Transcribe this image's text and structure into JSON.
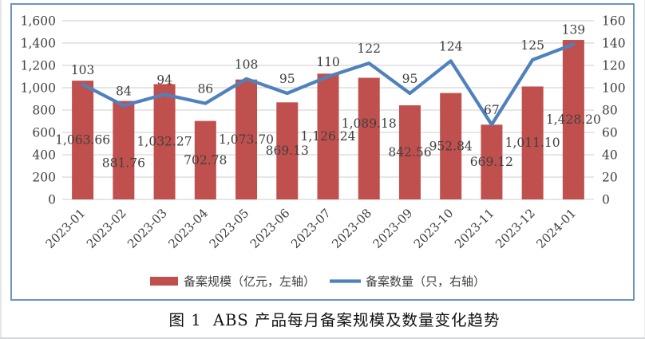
{
  "figure": {
    "caption": "图 1  ABS 产品每月备案规模及数量变化趋势"
  },
  "chart_data": {
    "type": "bar",
    "subtype": "combo-bar-line-dual-axis",
    "categories": [
      "2023-01",
      "2023-02",
      "2023-03",
      "2023-04",
      "2023-05",
      "2023-06",
      "2023-07",
      "2023-08",
      "2023-09",
      "2023-10",
      "2023-11",
      "2023-12",
      "2024-01"
    ],
    "series": [
      {
        "name": "备案规模（亿元，左轴）",
        "type": "bar",
        "axis": "left",
        "color": "#C0504D",
        "values": [
          1063.66,
          881.76,
          1032.27,
          702.78,
          1073.7,
          869.13,
          1126.24,
          1089.18,
          842.56,
          952.84,
          669.12,
          1011.1,
          1428.2
        ],
        "labels": [
          "1,063.66",
          "881.76",
          "1,032.27",
          "702.78",
          "1,073.70",
          "869.13",
          "1,126.24",
          "1,089.18",
          "842.56",
          "952.84",
          "669.12",
          "1,011.10",
          "1,428.20"
        ]
      },
      {
        "name": "备案数量（只，右轴）",
        "type": "line",
        "axis": "right",
        "color": "#4F81BD",
        "values": [
          103,
          84,
          94,
          86,
          108,
          95,
          110,
          122,
          95,
          124,
          67,
          125,
          139
        ],
        "labels": [
          "103",
          "84",
          "94",
          "86",
          "108",
          "95",
          "110",
          "122",
          "95",
          "124",
          "67",
          "125",
          "139"
        ]
      }
    ],
    "left_axis": {
      "min": 0,
      "max": 1600,
      "step": 200,
      "tick_labels": [
        "0",
        "200",
        "400",
        "600",
        "800",
        "1,000",
        "1,200",
        "1,400",
        "1,600"
      ]
    },
    "right_axis": {
      "min": 0,
      "max": 160,
      "step": 20,
      "tick_labels": [
        "0",
        "20",
        "40",
        "60",
        "80",
        "100",
        "120",
        "140",
        "160"
      ]
    },
    "grid": true,
    "legend_position": "bottom",
    "colors": {
      "grid": "#D6D6D6",
      "axis_text": "#3F3F3F",
      "data_label_text": "#3F3F3F",
      "frame_border": "#6E93C2"
    },
    "layout_hints": {
      "bar_label_dy": [
        0,
        16,
        0,
        0,
        0,
        0,
        0,
        -19,
        0,
        0,
        0,
        0,
        0
      ]
    }
  }
}
